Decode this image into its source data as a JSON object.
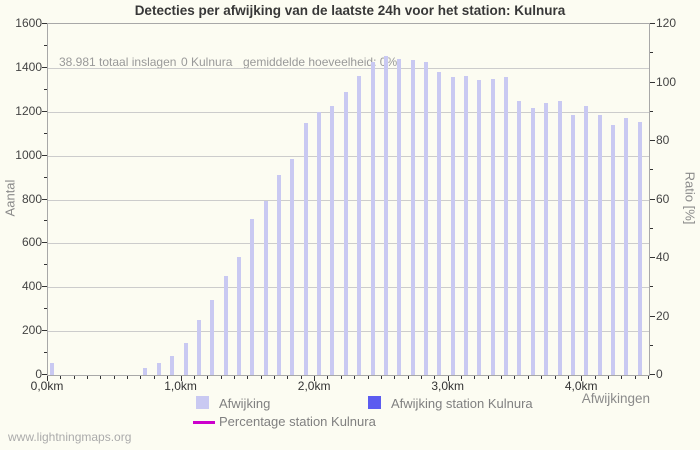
{
  "title": "Detecties per afwijking van de laatste 24h voor het station: Kulnura",
  "stats": {
    "total_strikes": "38.981 totaal inslagen",
    "station_count": "0 Kulnura",
    "average": "gemiddelde hoeveelheid: 0%"
  },
  "watermark": "www.lightningmaps.org",
  "axes": {
    "y_left": {
      "title": "Aantal",
      "ticks": [
        "0",
        "200",
        "400",
        "600",
        "800",
        "1000",
        "1200",
        "1400",
        "1600"
      ],
      "max": 1600
    },
    "y_right": {
      "title": "Ratio [%]",
      "ticks": [
        "0",
        "20",
        "40",
        "60",
        "80",
        "100",
        "120"
      ],
      "max": 120
    },
    "x": {
      "corner_label": "Afwijkingen",
      "tick_labels": [
        "0,0km",
        "1,0km",
        "2,0km",
        "3,0km",
        "4,0km"
      ],
      "minor_ticks_per_major": 10,
      "total_minor_ticks": 46
    }
  },
  "legend": {
    "items": [
      {
        "label": "Afwijking",
        "swatch": "square",
        "color": "#c9c9f2"
      },
      {
        "label": "Afwijking station Kulnura",
        "swatch": "square",
        "color": "#5c5cf0"
      },
      {
        "label": "Percentage station Kulnura",
        "swatch": "line",
        "color": "#cc00cc"
      }
    ]
  },
  "colors": {
    "bar": "#c9c9f2",
    "station_bar": "#5c5cf0",
    "percent_line": "#cc00cc",
    "grid": "#cccccc",
    "axis_border": "#a8a8a8",
    "background": "#fcfcf2",
    "title_text": "#383838",
    "tick_text": "#444444",
    "muted_text": "#909090"
  },
  "chart_data": {
    "type": "bar",
    "title": "Detecties per afwijking van de laatste 24h voor het station: Kulnura",
    "xlabel": "Afwijkingen",
    "ylabel": "Aantal",
    "y2label": "Ratio [%]",
    "x_unit": "km",
    "x_start": 0.0,
    "x_step": 0.1,
    "xlim": [
      0,
      4.5
    ],
    "ylim": [
      0,
      1600
    ],
    "y2lim": [
      0,
      120
    ],
    "grid": "horizontal",
    "legend_position": "bottom",
    "series": [
      {
        "name": "Afwijking",
        "axis": "left",
        "values": [
          55,
          0,
          0,
          0,
          0,
          0,
          0,
          30,
          55,
          85,
          145,
          250,
          340,
          450,
          540,
          710,
          795,
          910,
          985,
          1150,
          1200,
          1225,
          1290,
          1365,
          1425,
          1455,
          1440,
          1435,
          1425,
          1380,
          1360,
          1365,
          1345,
          1350,
          1360,
          1250,
          1215,
          1240,
          1250,
          1185,
          1225,
          1185,
          1140,
          1170,
          1155
        ]
      },
      {
        "name": "Afwijking station Kulnura",
        "axis": "left",
        "visible": false,
        "values": []
      },
      {
        "name": "Percentage station Kulnura",
        "axis": "right",
        "visible": false,
        "values": []
      }
    ]
  }
}
